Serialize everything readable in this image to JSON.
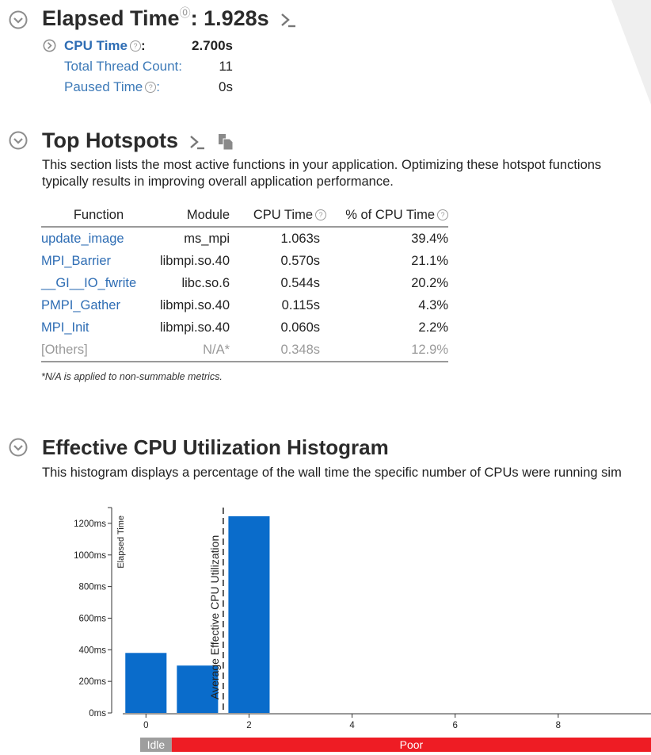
{
  "elapsed": {
    "title": "Elapsed Time",
    "value": "1.928s",
    "metrics": [
      {
        "label": "CPU Time",
        "value": "2.700s",
        "help": true
      },
      {
        "label": "Total Thread Count:",
        "value": "11",
        "help": false
      },
      {
        "label": "Paused Time",
        "value": "0s",
        "help": true
      }
    ]
  },
  "hotspots": {
    "title": "Top Hotspots",
    "description_line1": "This section lists the most active functions in your application. Optimizing these hotspot functions",
    "description_line2": "typically results in improving overall application performance.",
    "columns": [
      "Function",
      "Module",
      "CPU Time",
      "% of CPU Time"
    ],
    "rows": [
      {
        "function": "update_image",
        "module": "ms_mpi",
        "cpu_time": "1.063s",
        "percent": "39.4%"
      },
      {
        "function": "MPI_Barrier",
        "module": "libmpi.so.40",
        "cpu_time": "0.570s",
        "percent": "21.1%"
      },
      {
        "function": "__GI__IO_fwrite",
        "module": "libc.so.6",
        "cpu_time": "0.544s",
        "percent": "20.2%"
      },
      {
        "function": "PMPI_Gather",
        "module": "libmpi.so.40",
        "cpu_time": "0.115s",
        "percent": "4.3%"
      },
      {
        "function": "MPI_Init",
        "module": "libmpi.so.40",
        "cpu_time": "0.060s",
        "percent": "2.2%"
      }
    ],
    "others": {
      "function": "[Others]",
      "module": "N/A*",
      "cpu_time": "0.348s",
      "percent": "12.9%"
    },
    "note": "*N/A is applied to non-summable metrics."
  },
  "histogram": {
    "title": "Effective CPU Utilization Histogram",
    "description": "This histogram displays a percentage of the wall time the specific number of CPUs were running sim"
  },
  "chart_data": {
    "type": "bar",
    "ylabel": "Elapsed Time",
    "ylim": [
      0,
      1300
    ],
    "y_ticks": [
      0,
      200,
      400,
      600,
      800,
      1000,
      1200
    ],
    "y_tick_labels": [
      "0ms",
      "200ms",
      "400ms",
      "600ms",
      "800ms",
      "1000ms",
      "1200ms"
    ],
    "xlim": [
      -0.45,
      9.8
    ],
    "x_ticks": [
      0,
      2,
      4,
      6,
      8
    ],
    "x_tick_labels": [
      "0",
      "2",
      "4",
      "6",
      "8"
    ],
    "bars": [
      {
        "x": 0,
        "value": 380
      },
      {
        "x": 1,
        "value": 300
      },
      {
        "x": 2,
        "value": 1245
      }
    ],
    "average_marker": {
      "x": 1.5,
      "label": "Average Effective CPU Utilization"
    },
    "ranges": [
      {
        "label": "Idle",
        "from": -0.45,
        "to": 0.5,
        "color": "#9e9e9e"
      },
      {
        "label": "Poor",
        "from": 0.5,
        "to": 9.8,
        "color": "#ee1c24"
      }
    ],
    "bar_color": "#0a6ccb"
  }
}
